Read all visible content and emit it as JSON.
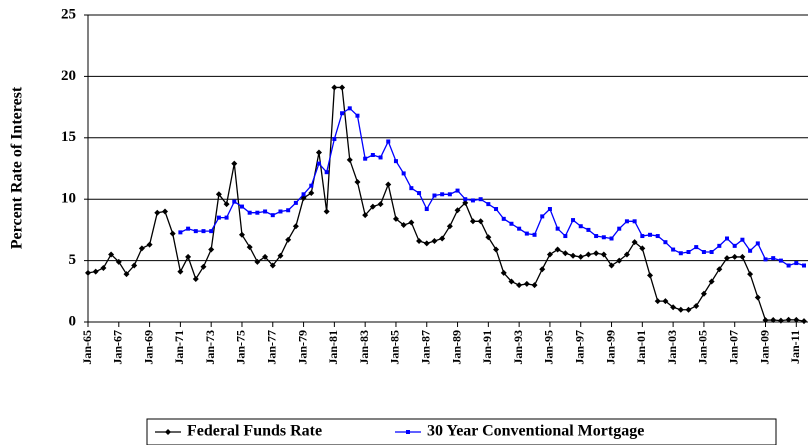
{
  "chart_data": {
    "type": "line",
    "y_label": "Percent Rate of Interest",
    "categories": [
      "Jan-65",
      null,
      null,
      null,
      "Jan-67",
      null,
      null,
      null,
      "Jan-69",
      null,
      null,
      null,
      "Jan-71",
      null,
      null,
      null,
      "Jan-73",
      null,
      null,
      null,
      "Jan-75",
      null,
      null,
      null,
      "Jan-77",
      null,
      null,
      null,
      "Jan-79",
      null,
      null,
      null,
      "Jan-81",
      null,
      null,
      null,
      "Jan-83",
      null,
      null,
      null,
      "Jan-85",
      null,
      null,
      null,
      "Jan-87",
      null,
      null,
      null,
      "Jan-89",
      null,
      null,
      null,
      "Jan-91",
      null,
      null,
      null,
      "Jan-93",
      null,
      null,
      null,
      "Jan-95",
      null,
      null,
      null,
      "Jan-97",
      null,
      null,
      null,
      "Jan-99",
      null,
      null,
      null,
      "Jan-01",
      null,
      null,
      null,
      "Jan-03",
      null,
      null,
      null,
      "Jan-05",
      null,
      null,
      null,
      "Jan-07",
      null,
      null,
      null,
      "Jan-09",
      null,
      null,
      null,
      "Jan-11",
      null
    ],
    "series": [
      {
        "name": "Federal Funds Rate",
        "color": "#000000",
        "marker": "diamond",
        "values": [
          4.0,
          4.1,
          4.4,
          5.5,
          4.9,
          3.9,
          4.6,
          6.0,
          6.3,
          8.9,
          9.0,
          7.2,
          4.1,
          5.3,
          3.5,
          4.5,
          5.9,
          10.4,
          9.6,
          12.9,
          7.1,
          6.1,
          4.9,
          5.3,
          4.6,
          5.4,
          6.7,
          7.8,
          10.1,
          10.5,
          13.8,
          9.0,
          19.1,
          19.1,
          13.2,
          11.4,
          8.7,
          9.4,
          9.6,
          11.2,
          8.4,
          7.9,
          8.1,
          6.6,
          6.4,
          6.6,
          6.8,
          7.8,
          9.1,
          9.7,
          8.2,
          8.2,
          6.9,
          5.9,
          4.0,
          3.3,
          3.0,
          3.1,
          3.0,
          4.3,
          5.5,
          5.9,
          5.6,
          5.4,
          5.3,
          5.5,
          5.6,
          5.5,
          4.6,
          5.0,
          5.5,
          6.5,
          6.0,
          3.8,
          1.7,
          1.7,
          1.2,
          1.0,
          1.0,
          1.3,
          2.3,
          3.3,
          4.3,
          5.2,
          5.3,
          5.3,
          3.9,
          2.0,
          0.15,
          0.16,
          0.11,
          0.18,
          0.17,
          0.07
        ]
      },
      {
        "name": "30 Year Conventional Mortgage",
        "color": "#0000ff",
        "marker": "square",
        "values": [
          null,
          null,
          null,
          null,
          null,
          null,
          null,
          null,
          null,
          null,
          null,
          null,
          7.3,
          7.6,
          7.4,
          7.4,
          7.4,
          8.5,
          8.5,
          9.8,
          9.4,
          8.9,
          8.9,
          9.0,
          8.7,
          9.0,
          9.1,
          9.7,
          10.4,
          11.1,
          12.9,
          12.2,
          14.9,
          17.0,
          17.4,
          16.8,
          13.3,
          13.6,
          13.4,
          14.7,
          13.1,
          12.1,
          10.9,
          10.5,
          9.2,
          10.3,
          10.4,
          10.4,
          10.7,
          10.0,
          9.9,
          10.0,
          9.6,
          9.2,
          8.4,
          8.0,
          7.6,
          7.2,
          7.1,
          8.6,
          9.2,
          7.6,
          7.0,
          8.3,
          7.8,
          7.5,
          7.0,
          6.9,
          6.8,
          7.6,
          8.2,
          8.2,
          7.0,
          7.1,
          7.0,
          6.5,
          5.9,
          5.6,
          5.7,
          6.1,
          5.7,
          5.7,
          6.2,
          6.8,
          6.2,
          6.7,
          5.8,
          6.4,
          5.1,
          5.2,
          5.0,
          4.6,
          4.8,
          4.6
        ]
      }
    ],
    "ylim": [
      0,
      25
    ],
    "yticks": [
      0,
      5,
      10,
      15,
      20,
      25
    ],
    "grid": true
  }
}
